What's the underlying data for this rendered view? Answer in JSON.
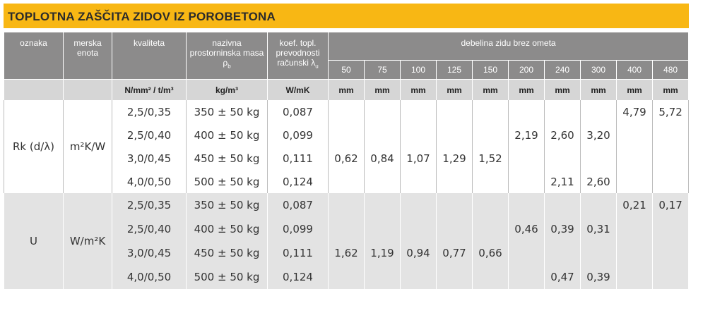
{
  "header": {
    "title": "TOPLOTNA ZAŠČITA ZIDOV IZ POROBETONA"
  },
  "table": {
    "columns": [
      {
        "text": "oznaka"
      },
      {
        "text": "merska enota"
      },
      {
        "text": "kvaliteta"
      },
      {
        "text": "nazivna prostorninska masa ρ",
        "sub": "b"
      },
      {
        "text": "koef. topl. prevodnosti računski λ",
        "sub": "u"
      }
    ],
    "group_header": "debelina zidu brez ometa",
    "thicknesses": [
      "50",
      "75",
      "100",
      "125",
      "150",
      "200",
      "240",
      "300",
      "400",
      "480"
    ],
    "units": [
      "N/mm² / t/m³",
      "kg/m³",
      "W/mK",
      "mm",
      "mm",
      "mm",
      "mm",
      "mm",
      "mm",
      "mm",
      "mm",
      "mm",
      "mm"
    ],
    "sections": [
      {
        "label": "Rk (d/λ)",
        "unit": "m²K/W",
        "rows": [
          [
            "2,5/0,35",
            "350 ± 50 kg",
            "0,087",
            null,
            null,
            null,
            null,
            null,
            null,
            null,
            null,
            "4,79",
            "5,72"
          ],
          [
            "2,5/0,40",
            "400 ± 50 kg",
            "0,099",
            null,
            null,
            null,
            null,
            null,
            "2,19",
            "2,60",
            "3,20",
            null,
            null
          ],
          [
            "3,0/0,45",
            "450 ± 50 kg",
            "0,111",
            "0,62",
            "0,84",
            "1,07",
            "1,29",
            "1,52",
            null,
            null,
            null,
            null,
            null
          ],
          [
            "4,0/0,50",
            "500 ± 50 kg",
            "0,124",
            null,
            null,
            null,
            null,
            null,
            null,
            "2,11",
            "2,60",
            null,
            null
          ]
        ]
      },
      {
        "label": "U",
        "unit": "W/m²K",
        "rows": [
          [
            "2,5/0,35",
            "350 ± 50 kg",
            "0,087",
            null,
            null,
            null,
            null,
            null,
            null,
            null,
            null,
            "0,21",
            "0,17"
          ],
          [
            "2,5/0,40",
            "400 ± 50 kg",
            "0,099",
            null,
            null,
            null,
            null,
            null,
            "0,46",
            "0,39",
            "0,31",
            null,
            null
          ],
          [
            "3,0/0,45",
            "450 ± 50 kg",
            "0,111",
            "1,62",
            "1,19",
            "0,94",
            "0,77",
            "0,66",
            null,
            null,
            null,
            null,
            null
          ],
          [
            "4,0/0,50",
            "500 ± 50 kg",
            "0,124",
            null,
            null,
            null,
            null,
            null,
            null,
            "0,47",
            "0,39",
            null,
            null
          ]
        ]
      }
    ]
  }
}
